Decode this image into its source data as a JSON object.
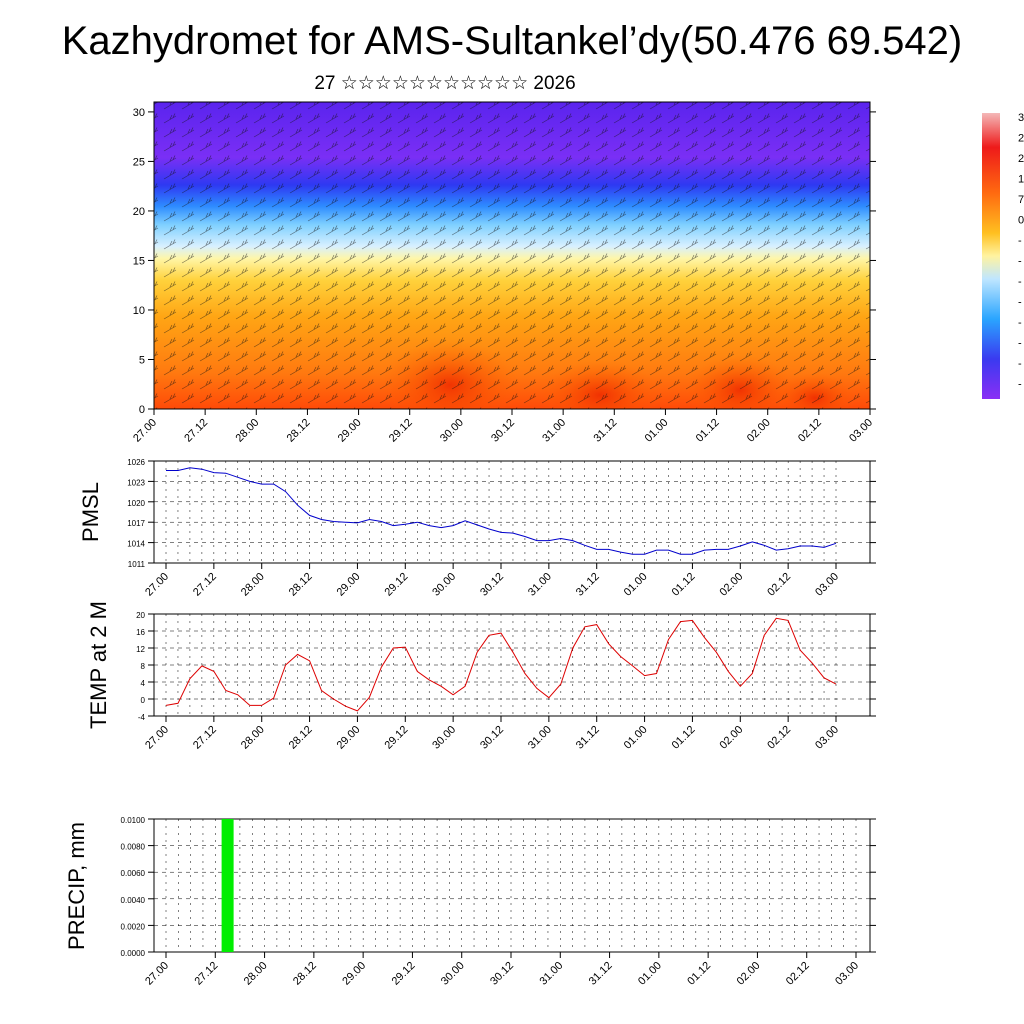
{
  "page": {
    "title": "Kazhydromet for AMS-Sultankel’dy(50.476 69.542)",
    "subtitle": "27 ☆☆☆☆☆☆☆☆☆☆☆ 2026"
  },
  "colors": {
    "pmsl_line": "#0000cc",
    "temp_line": "#dd0000",
    "precip_bar": "#00ee00",
    "grid": "#000000"
  },
  "chart_data": [
    {
      "type": "heatmap",
      "name": "cross-section",
      "title": "",
      "x_tick_labels": [
        "27.00",
        "27.12",
        "28.00",
        "28.12",
        "29.00",
        "29.12",
        "30.00",
        "30.12",
        "31.00",
        "31.12",
        "01.00",
        "01.12",
        "02.00",
        "02.12",
        "03.00"
      ],
      "ylim": [
        0,
        31
      ],
      "y_ticks": [
        0,
        5,
        10,
        15,
        20,
        25,
        30
      ],
      "colorbar_labels": [
        "3",
        "2",
        "2",
        "1",
        "7",
        "0",
        "-",
        "-",
        "-",
        "-",
        "-",
        "-",
        "-",
        "-"
      ],
      "note": "temperature field with wind barbs; warm below ~15, cold above ~20"
    },
    {
      "type": "line",
      "name": "PMSL",
      "ylabel": "PMSL",
      "ylim": [
        1011,
        1026
      ],
      "y_ticks": [
        1011,
        1014,
        1017,
        1020,
        1023,
        1026
      ],
      "x_tick_labels": [
        "27.00",
        "27.12",
        "28.00",
        "28.12",
        "29.00",
        "29.12",
        "30.00",
        "30.12",
        "31.00",
        "31.12",
        "01.00",
        "01.12",
        "02.00",
        "02.12",
        "03.00"
      ],
      "x": [
        0,
        1,
        2,
        3,
        4,
        5,
        6,
        7,
        8,
        9,
        10,
        11,
        12,
        13,
        14,
        15,
        16,
        17,
        18,
        19,
        20,
        21,
        22,
        23,
        24,
        25,
        26,
        27,
        28,
        29,
        30,
        31,
        32,
        33,
        34,
        35,
        36,
        37,
        38,
        39,
        40,
        41,
        42,
        43,
        44,
        45,
        46,
        47,
        48,
        49,
        50,
        51,
        52,
        53,
        54,
        55,
        56
      ],
      "values": [
        1024.6,
        1024.6,
        1025,
        1024.8,
        1024.3,
        1024.2,
        1023.6,
        1023,
        1022.6,
        1022.6,
        1021.5,
        1019.5,
        1018,
        1017.4,
        1017.1,
        1017,
        1016.9,
        1017.4,
        1017.1,
        1016.5,
        1016.7,
        1017,
        1016.5,
        1016.2,
        1016.5,
        1017.2,
        1016.6,
        1016,
        1015.5,
        1015.4,
        1014.9,
        1014.3,
        1014.3,
        1014.6,
        1014.3,
        1013.6,
        1013,
        1013,
        1012.6,
        1012.3,
        1012.3,
        1012.9,
        1012.9,
        1012.3,
        1012.3,
        1012.9,
        1013,
        1013,
        1013.5,
        1014.1,
        1013.6,
        1012.9,
        1013.1,
        1013.5,
        1013.5,
        1013.3,
        1013.9
      ]
    },
    {
      "type": "line",
      "name": "TEMP at 2 M",
      "ylabel": "TEMP at 2 M",
      "ylim": [
        -4,
        20
      ],
      "y_ticks": [
        -4,
        0,
        4,
        8,
        12,
        16,
        20
      ],
      "x_tick_labels": [
        "27.00",
        "27.12",
        "28.00",
        "28.12",
        "29.00",
        "29.12",
        "30.00",
        "30.12",
        "31.00",
        "31.12",
        "01.00",
        "01.12",
        "02.00",
        "02.12",
        "03.00"
      ],
      "x": [
        0,
        1,
        2,
        3,
        4,
        5,
        6,
        7,
        8,
        9,
        10,
        11,
        12,
        13,
        14,
        15,
        16,
        17,
        18,
        19,
        20,
        21,
        22,
        23,
        24,
        25,
        26,
        27,
        28,
        29,
        30,
        31,
        32,
        33,
        34,
        35,
        36,
        37,
        38,
        39,
        40,
        41,
        42,
        43,
        44,
        45,
        46,
        47,
        48,
        49,
        50,
        51,
        52,
        53,
        54,
        55,
        56
      ],
      "values": [
        -1.5,
        -1,
        4.8,
        7.8,
        6.5,
        2,
        1,
        -1.5,
        -1.5,
        0.2,
        8,
        10.5,
        9,
        2,
        0,
        -1.7,
        -2.8,
        0.4,
        7.5,
        12,
        12.2,
        6.5,
        4.5,
        3,
        1,
        3,
        11,
        15,
        15.5,
        11,
        6,
        2.5,
        0.3,
        3.5,
        12,
        17,
        17.5,
        13,
        10,
        7.8,
        5.5,
        6,
        14,
        18.2,
        18.5,
        14.5,
        11,
        6.5,
        3,
        6,
        15,
        19,
        18.5,
        11.5,
        8.5,
        5,
        3.5
      ]
    },
    {
      "type": "bar",
      "name": "PRECIP, mm",
      "ylabel": "PRECIP, mm",
      "ylim": [
        0,
        0.01
      ],
      "y_tick_labels": [
        "0.0000",
        "0.0020",
        "0.0040",
        "0.0060",
        "0.0080",
        "0.0100"
      ],
      "x_tick_labels": [
        "27.00",
        "27.12",
        "28.00",
        "28.12",
        "29.00",
        "29.12",
        "30.00",
        "30.12",
        "31.00",
        "31.12",
        "01.00",
        "01.12",
        "02.00",
        "02.12",
        "03.00"
      ],
      "bars": [
        {
          "x": 5,
          "value": 0.01
        }
      ]
    }
  ]
}
